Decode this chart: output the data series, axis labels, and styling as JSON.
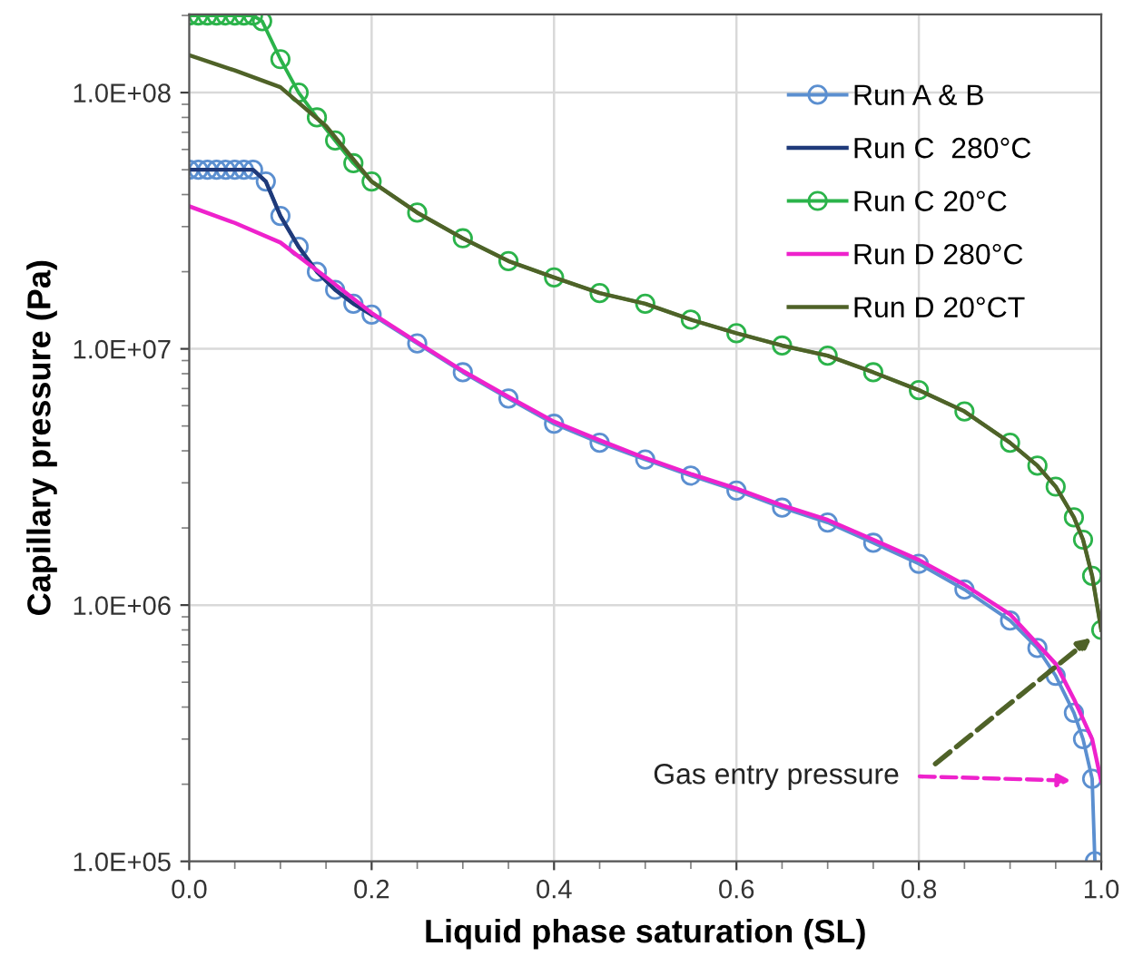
{
  "chart_data": {
    "type": "line",
    "xlabel": "Liquid phase saturation (SL)",
    "ylabel": "Capillary pressure (Pa)",
    "log": "y",
    "grid": true,
    "legend": "top right",
    "xlim": [
      0,
      1
    ],
    "xticks": [
      {
        "value": 0,
        "label": "0.0"
      },
      0.2,
      0.4,
      0.6,
      0.8,
      {
        "value": 1,
        "label": "1.0"
      }
    ],
    "ylim": [
      100000,
      202000000
    ],
    "yticks": [
      {
        "value": 100000,
        "label": "1.0E+05"
      },
      {
        "value": 1000000,
        "label": "1.0E+06"
      },
      {
        "value": 10000000,
        "label": "1.0E+07"
      },
      {
        "value": 100000000,
        "label": "1.0E+08"
      }
    ],
    "annotations": [
      "Gas entry pressure"
    ],
    "series": [
      {
        "name": "Run A & B",
        "color": "#5b8fd0",
        "marker": "circle",
        "x": [
          0,
          0.01,
          0.02,
          0.03,
          0.04,
          0.05,
          0.06,
          0.07,
          0.084,
          0.1,
          0.12,
          0.14,
          0.16,
          0.18,
          0.2,
          0.25,
          0.3,
          0.35,
          0.4,
          0.45,
          0.5,
          0.55,
          0.6,
          0.65,
          0.7,
          0.75,
          0.8,
          0.85,
          0.9,
          0.93,
          0.95,
          0.97,
          0.98,
          0.99,
          0.993
        ],
        "values": [
          50000000,
          50000000,
          50000000,
          50000000,
          50000000,
          50000000,
          50000000,
          50000000,
          45000000,
          33000000,
          25000000,
          20000000,
          17000000,
          15000000,
          13600000,
          10500000,
          8100000,
          6400000,
          5100000,
          4300000,
          3700000,
          3200000,
          2800000,
          2400000,
          2100000,
          1750000,
          1450000,
          1150000,
          870000,
          680000,
          530000,
          380000,
          300000,
          210000,
          100000
        ]
      },
      {
        "name": "Run C  280°C",
        "color": "#1f3a7a",
        "marker": "none",
        "x": [
          0,
          0.07,
          0.084,
          0.1,
          0.12,
          0.14,
          0.16,
          0.18,
          0.2
        ],
        "values": [
          50000000,
          50000000,
          45000000,
          33000000,
          25000000,
          20000000,
          17000000,
          15000000,
          13600000
        ]
      },
      {
        "name": "Run C 20°C",
        "color": "#2bb34a",
        "marker": "circle",
        "x": [
          0,
          0.01,
          0.02,
          0.03,
          0.04,
          0.05,
          0.06,
          0.07,
          0.08,
          0.1,
          0.12,
          0.14,
          0.16,
          0.18,
          0.2,
          0.25,
          0.3,
          0.35,
          0.4,
          0.45,
          0.5,
          0.55,
          0.6,
          0.65,
          0.7,
          0.75,
          0.8,
          0.85,
          0.9,
          0.93,
          0.95,
          0.97,
          0.98,
          0.99,
          1.0
        ],
        "values": [
          200000000,
          200000000,
          200000000,
          200000000,
          200000000,
          200000000,
          200000000,
          200000000,
          190000000,
          135000000,
          100000000,
          80000000,
          65000000,
          53000000,
          45000000,
          34000000,
          27000000,
          22000000,
          19000000,
          16500000,
          15000000,
          13000000,
          11500000,
          10300000,
          9400000,
          8100000,
          6900000,
          5700000,
          4300000,
          3500000,
          2900000,
          2200000,
          1800000,
          1300000,
          800000
        ]
      },
      {
        "name": "Run D 280°C",
        "color": "#ee22cc",
        "marker": "none",
        "x": [
          0,
          0.05,
          0.1,
          0.15,
          0.2,
          0.25,
          0.3,
          0.35,
          0.4,
          0.45,
          0.5,
          0.55,
          0.6,
          0.65,
          0.7,
          0.75,
          0.8,
          0.85,
          0.9,
          0.95,
          0.97,
          0.99,
          1.0
        ],
        "values": [
          36000000,
          31000000,
          26000000,
          19000000,
          13800000,
          10600000,
          8200000,
          6500000,
          5200000,
          4400000,
          3750000,
          3250000,
          2850000,
          2450000,
          2150000,
          1800000,
          1500000,
          1200000,
          920000,
          590000,
          430000,
          300000,
          205000
        ]
      },
      {
        "name": "Run D 20°CT",
        "color": "#4f6228",
        "marker": "none",
        "x": [
          0,
          0.05,
          0.1,
          0.15,
          0.2,
          0.25,
          0.3,
          0.35,
          0.4,
          0.45,
          0.5,
          0.55,
          0.6,
          0.65,
          0.7,
          0.75,
          0.8,
          0.85,
          0.9,
          0.93,
          0.95,
          0.97,
          0.98,
          0.99,
          1.0
        ],
        "values": [
          140000000,
          122000000,
          105000000,
          74000000,
          45000000,
          34000000,
          27000000,
          22000000,
          19000000,
          16500000,
          15000000,
          13000000,
          11500000,
          10300000,
          9400000,
          8100000,
          6900000,
          5700000,
          4300000,
          3500000,
          2900000,
          2200000,
          1800000,
          1300000,
          800000
        ]
      }
    ]
  }
}
